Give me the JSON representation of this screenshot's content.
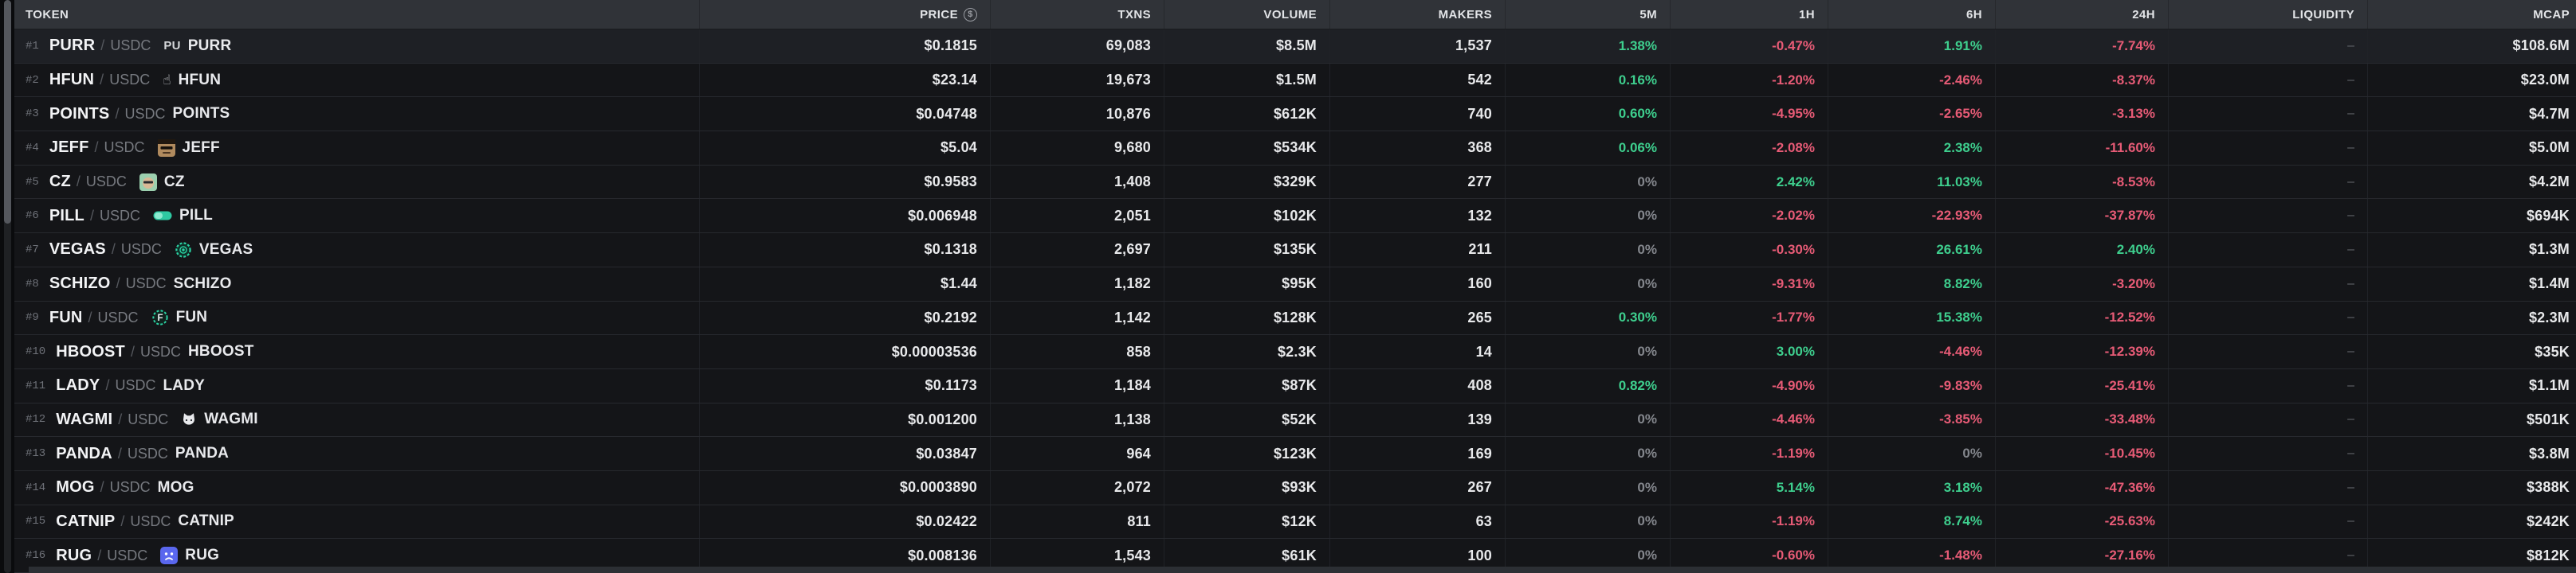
{
  "colors": {
    "green": "#3ecf8e",
    "red": "#e75b76",
    "muted": "#84878d"
  },
  "scrollbar": {
    "orientation": "vertical",
    "thumb_top": 0,
    "thumb_height": 281
  },
  "table": {
    "columns": [
      {
        "key": "token",
        "label": "TOKEN"
      },
      {
        "key": "price",
        "label": "PRICE",
        "icon": "dollar-circle"
      },
      {
        "key": "txns",
        "label": "TXNS"
      },
      {
        "key": "volume",
        "label": "VOLUME"
      },
      {
        "key": "makers",
        "label": "MAKERS"
      },
      {
        "key": "m5",
        "label": "5M"
      },
      {
        "key": "h1",
        "label": "1H"
      },
      {
        "key": "h6",
        "label": "6H"
      },
      {
        "key": "h24",
        "label": "24H"
      },
      {
        "key": "liquidity",
        "label": "LIQUIDITY"
      },
      {
        "key": "mcap",
        "label": "MCAP"
      }
    ],
    "quote_separator": "/",
    "rows": [
      {
        "rank": "#1",
        "symbol": "PURR",
        "quote": "USDC",
        "icon": "pu-text",
        "icon_text": "PU",
        "name": "PURR",
        "price": "$0.1815",
        "txns": "69,083",
        "volume": "$8.5M",
        "makers": "1,537",
        "m5": "1.38%",
        "h1": "-0.47%",
        "h6": "1.91%",
        "h24": "-7.74%",
        "liquidity": "-",
        "mcap": "$108.6M",
        "highlighted": true
      },
      {
        "rank": "#2",
        "symbol": "HFUN",
        "quote": "USDC",
        "icon": "hand",
        "name": "HFUN",
        "price": "$23.14",
        "txns": "19,673",
        "volume": "$1.5M",
        "makers": "542",
        "m5": "0.16%",
        "h1": "-1.20%",
        "h6": "-2.46%",
        "h24": "-8.37%",
        "liquidity": "-",
        "mcap": "$23.0M"
      },
      {
        "rank": "#3",
        "symbol": "POINTS",
        "quote": "USDC",
        "icon": "none",
        "name": "POINTS",
        "price": "$0.04748",
        "txns": "10,876",
        "volume": "$612K",
        "makers": "740",
        "m5": "0.60%",
        "h1": "-4.95%",
        "h6": "-2.65%",
        "h24": "-3.13%",
        "liquidity": "-",
        "mcap": "$4.7M"
      },
      {
        "rank": "#4",
        "symbol": "JEFF",
        "quote": "USDC",
        "icon": "jeff-avatar",
        "name": "JEFF",
        "price": "$5.04",
        "txns": "9,680",
        "volume": "$534K",
        "makers": "368",
        "m5": "0.06%",
        "h1": "-2.08%",
        "h6": "2.38%",
        "h24": "-11.60%",
        "liquidity": "-",
        "mcap": "$5.0M"
      },
      {
        "rank": "#5",
        "symbol": "CZ",
        "quote": "USDC",
        "icon": "cz-avatar",
        "name": "CZ",
        "price": "$0.9583",
        "txns": "1,408",
        "volume": "$329K",
        "makers": "277",
        "m5": "0%",
        "h1": "2.42%",
        "h6": "11.03%",
        "h24": "-8.53%",
        "liquidity": "-",
        "mcap": "$4.2M"
      },
      {
        "rank": "#6",
        "symbol": "PILL",
        "quote": "USDC",
        "icon": "pill",
        "name": "PILL",
        "price": "$0.006948",
        "txns": "2,051",
        "volume": "$102K",
        "makers": "132",
        "m5": "0%",
        "h1": "-2.02%",
        "h6": "-22.93%",
        "h24": "-37.87%",
        "liquidity": "-",
        "mcap": "$694K"
      },
      {
        "rank": "#7",
        "symbol": "VEGAS",
        "quote": "USDC",
        "icon": "chip",
        "name": "VEGAS",
        "price": "$0.1318",
        "txns": "2,697",
        "volume": "$135K",
        "makers": "211",
        "m5": "0%",
        "h1": "-0.30%",
        "h6": "26.61%",
        "h24": "2.40%",
        "liquidity": "-",
        "mcap": "$1.3M"
      },
      {
        "rank": "#8",
        "symbol": "SCHIZO",
        "quote": "USDC",
        "icon": "none",
        "name": "SCHIZO",
        "price": "$1.44",
        "txns": "1,182",
        "volume": "$95K",
        "makers": "160",
        "m5": "0%",
        "h1": "-9.31%",
        "h6": "8.82%",
        "h24": "-3.20%",
        "liquidity": "-",
        "mcap": "$1.4M"
      },
      {
        "rank": "#9",
        "symbol": "FUN",
        "quote": "USDC",
        "icon": "chip-f",
        "name": "FUN",
        "price": "$0.2192",
        "txns": "1,142",
        "volume": "$128K",
        "makers": "265",
        "m5": "0.30%",
        "h1": "-1.77%",
        "h6": "15.38%",
        "h24": "-12.52%",
        "liquidity": "-",
        "mcap": "$2.3M"
      },
      {
        "rank": "#10",
        "symbol": "HBOOST",
        "quote": "USDC",
        "icon": "none",
        "name": "HBOOST",
        "price": "$0.00003536",
        "txns": "858",
        "volume": "$2.3K",
        "makers": "14",
        "m5": "0%",
        "h1": "3.00%",
        "h6": "-4.46%",
        "h24": "-12.39%",
        "liquidity": "-",
        "mcap": "$35K"
      },
      {
        "rank": "#11",
        "symbol": "LADY",
        "quote": "USDC",
        "icon": "none",
        "name": "LADY",
        "price": "$0.1173",
        "txns": "1,184",
        "volume": "$87K",
        "makers": "408",
        "m5": "0.82%",
        "h1": "-4.90%",
        "h6": "-9.83%",
        "h24": "-25.41%",
        "liquidity": "-",
        "mcap": "$1.1M"
      },
      {
        "rank": "#12",
        "symbol": "WAGMI",
        "quote": "USDC",
        "icon": "cat",
        "name": "WAGMI",
        "price": "$0.001200",
        "txns": "1,138",
        "volume": "$52K",
        "makers": "139",
        "m5": "0%",
        "h1": "-4.46%",
        "h6": "-3.85%",
        "h24": "-33.48%",
        "liquidity": "-",
        "mcap": "$501K"
      },
      {
        "rank": "#13",
        "symbol": "PANDA",
        "quote": "USDC",
        "icon": "none",
        "name": "PANDA",
        "price": "$0.03847",
        "txns": "964",
        "volume": "$123K",
        "makers": "169",
        "m5": "0%",
        "h1": "-1.19%",
        "h6": "0%",
        "h24": "-10.45%",
        "liquidity": "-",
        "mcap": "$3.8M"
      },
      {
        "rank": "#14",
        "symbol": "MOG",
        "quote": "USDC",
        "icon": "none",
        "name": "MOG",
        "price": "$0.0003890",
        "txns": "2,072",
        "volume": "$93K",
        "makers": "267",
        "m5": "0%",
        "h1": "5.14%",
        "h6": "3.18%",
        "h24": "-47.36%",
        "liquidity": "-",
        "mcap": "$388K"
      },
      {
        "rank": "#15",
        "symbol": "CATNIP",
        "quote": "USDC",
        "icon": "none",
        "name": "CATNIP",
        "price": "$0.02422",
        "txns": "811",
        "volume": "$12K",
        "makers": "63",
        "m5": "0%",
        "h1": "-1.19%",
        "h6": "8.74%",
        "h24": "-25.63%",
        "liquidity": "-",
        "mcap": "$242K"
      },
      {
        "rank": "#16",
        "symbol": "RUG",
        "quote": "USDC",
        "icon": "rug",
        "name": "RUG",
        "price": "$0.008136",
        "txns": "1,543",
        "volume": "$61K",
        "makers": "100",
        "m5": "0%",
        "h1": "-0.60%",
        "h6": "-1.48%",
        "h24": "-27.16%",
        "liquidity": "-",
        "mcap": "$812K"
      }
    ]
  }
}
